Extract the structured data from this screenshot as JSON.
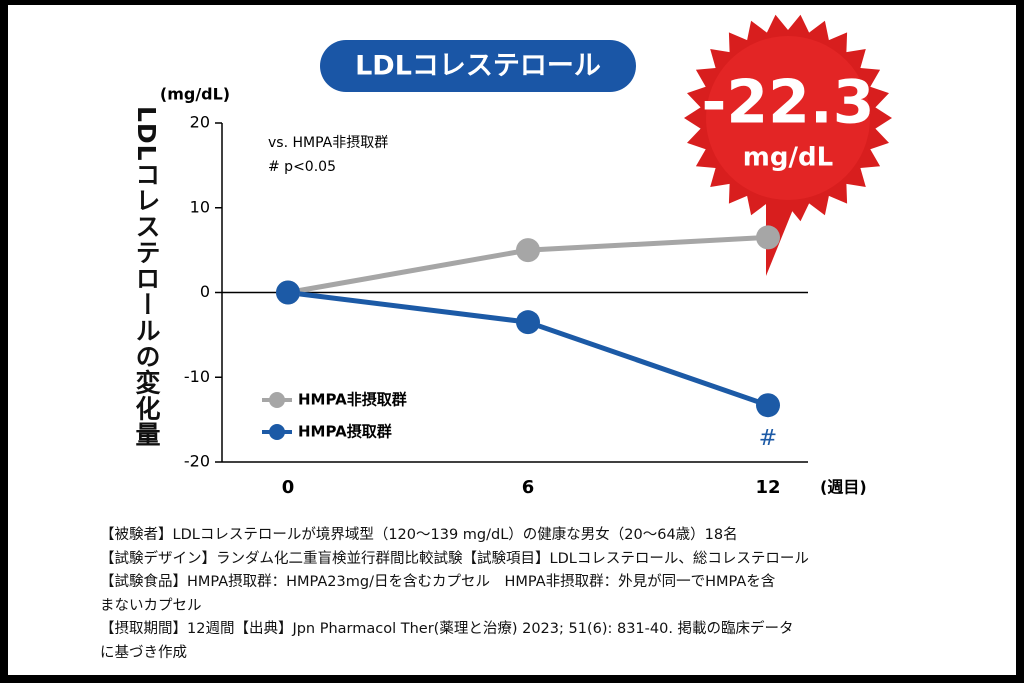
{
  "chart_data": {
    "type": "line",
    "title": "LDLコレステロール",
    "y_label": "LDLコレステロールの変化量",
    "y_unit": "(mg/dL)",
    "x_unit": "(週目)",
    "annotations": [
      "vs. HMPA非摂取群",
      "# p<0.05"
    ],
    "significance": "#",
    "highlight": {
      "value": "-22.3",
      "unit": "mg/dL"
    },
    "x": [
      0,
      6,
      12
    ],
    "xlim": [
      -1.65,
      13
    ],
    "xticks": [
      0,
      6,
      12
    ],
    "ylim": [
      -20,
      20
    ],
    "yticks": [
      20,
      10,
      0,
      -10,
      -20
    ],
    "series": [
      {
        "name": "HMPA非摂取群",
        "color": "#a6a6a6",
        "values": [
          0,
          5,
          6.5
        ]
      },
      {
        "name": "HMPA摂取群",
        "color": "#1c5aa6",
        "values": [
          0,
          -3.5,
          -13.3
        ]
      }
    ]
  },
  "notes": [
    "【被験者】LDLコレステロールが境界域型（120～139 mg/dL）の健康な男女（20～64歳）18名",
    "【試験デザイン】ランダム化二重盲検並行群間比較試験【試験項目】LDLコレステロール、総コレステロール",
    "【試験食品】HMPA摂取群：HMPA23mg/日を含むカプセル　HMPA非摂取群：外見が同一でHMPAを含",
    "まないカプセル",
    "【摂取期間】12週間【出典】Jpn Pharmacol Ther(薬理と治療) 2023; 51(6): 831-40. 掲載の臨床データ",
    "に基づき作成"
  ]
}
